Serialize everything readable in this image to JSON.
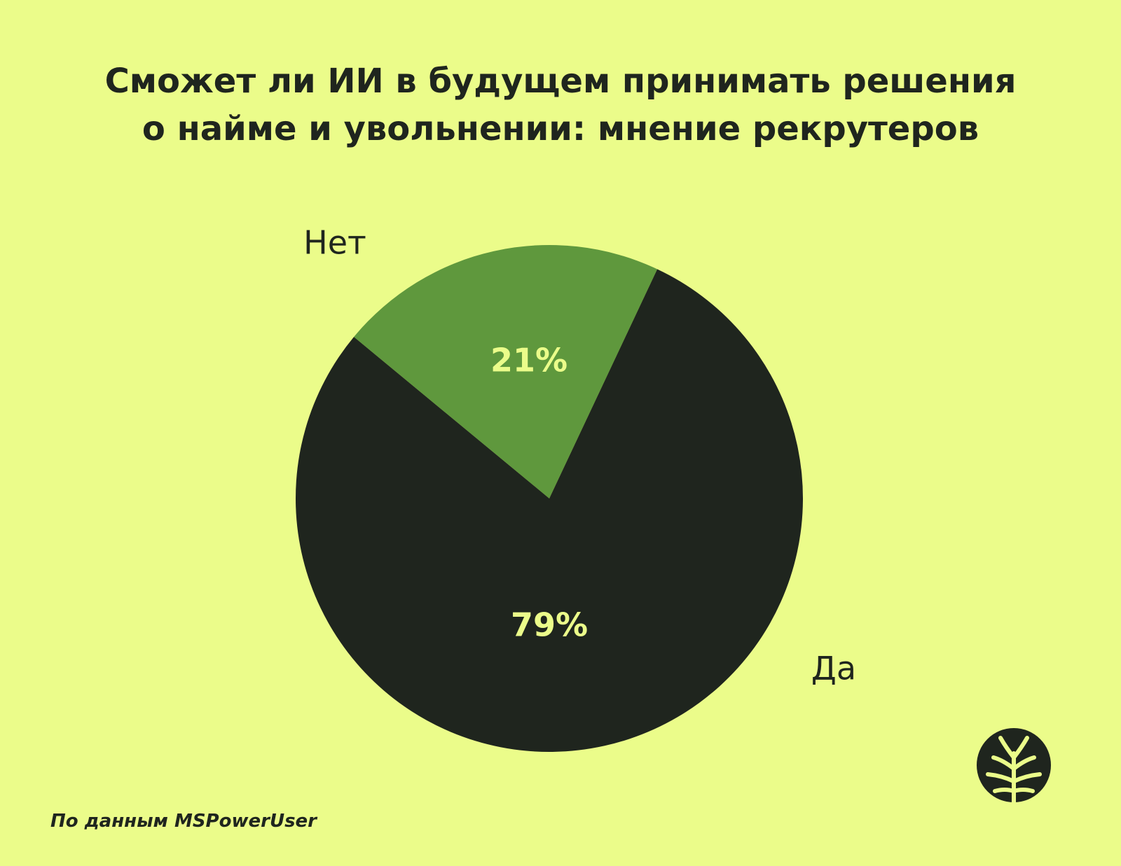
{
  "chart_data": {
    "type": "pie",
    "title_lines": [
      "Сможет ли ИИ в будущем принимать решения",
      "о найме и увольнении: мнение рекрутеров"
    ],
    "slices": [
      {
        "label": "Нет",
        "value": 21,
        "value_label": "21%",
        "color": "#5f983d"
      },
      {
        "label": "Да",
        "value": 79,
        "value_label": "79%",
        "color": "#1f251e"
      }
    ],
    "value_label_color": "#ebfc8a",
    "legend": "none"
  },
  "footer": {
    "source": "По данным MSPowerUser"
  },
  "colors": {
    "background": "#ebfc8a",
    "text": "#1f251e"
  },
  "logo": {
    "icon": "tree-icon"
  }
}
